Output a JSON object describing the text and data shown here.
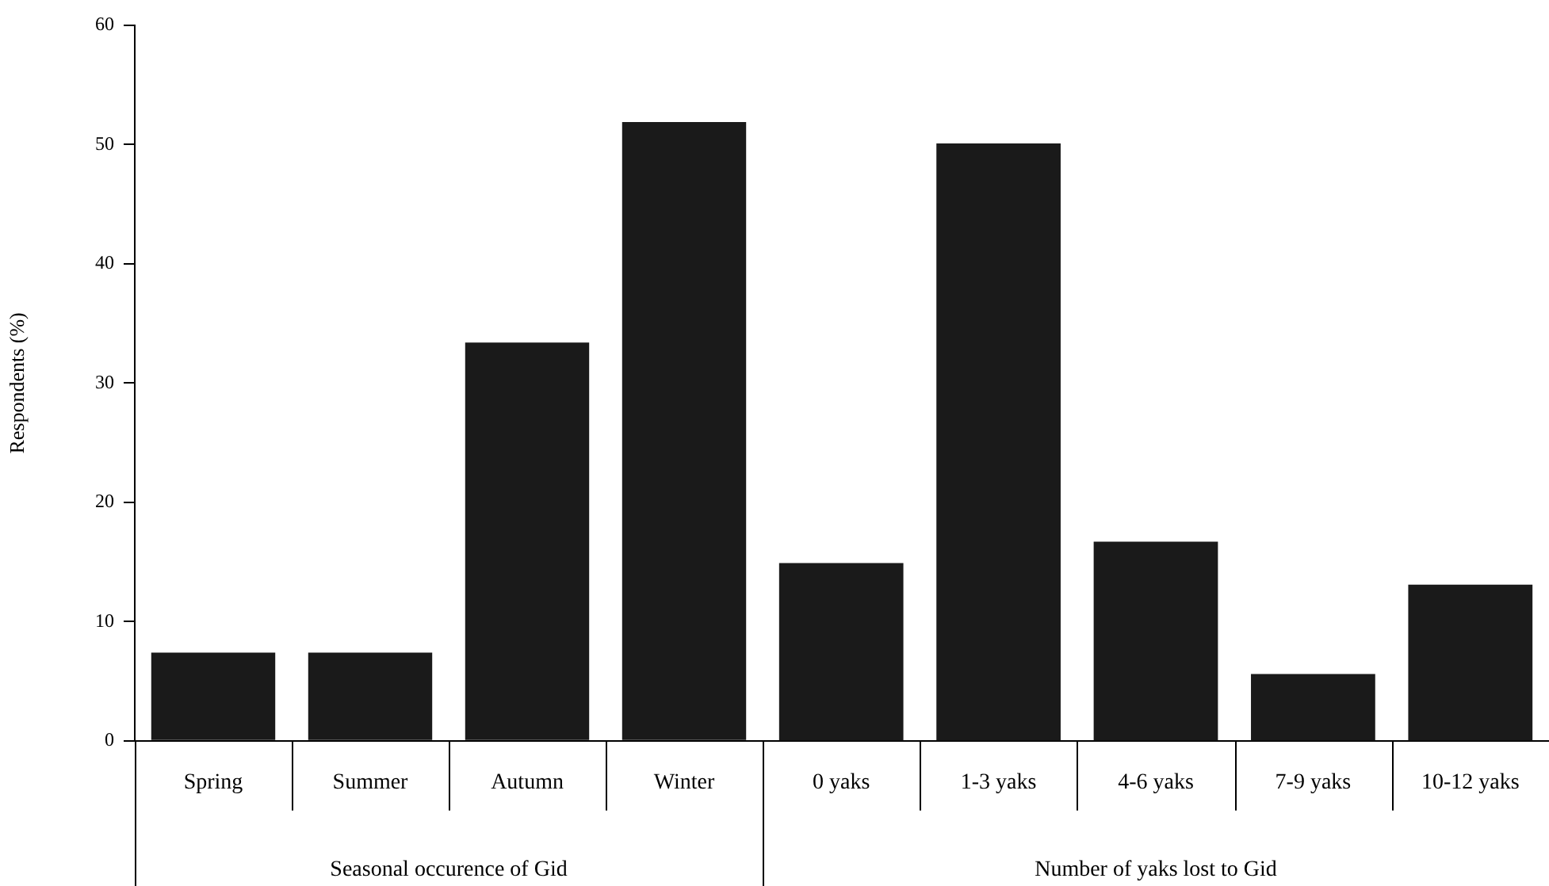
{
  "chart_data": [
    {
      "type": "bar",
      "ylabel": "Respondents (%)",
      "xlabel": "Seasonal occurence of Gid",
      "categories": [
        "Spring",
        "Summer",
        "Autumn",
        "Winter"
      ],
      "values": [
        7.4,
        7.4,
        33.4,
        51.9
      ],
      "color": "#1a1a1a",
      "ylim": [
        0,
        60
      ],
      "yticks": [
        0,
        10,
        20,
        30,
        40,
        50,
        60
      ]
    },
    {
      "type": "bar",
      "xlabel": "Number of yaks lost to Gid",
      "categories": [
        "0 yaks",
        "1-3 yaks",
        "4-6 yaks",
        "7-9 yaks",
        "10-12 yaks"
      ],
      "values": [
        14.9,
        50.1,
        16.7,
        5.6,
        13.1
      ],
      "color": "#1a1a1a",
      "ylim": [
        0,
        60
      ],
      "yticks": [
        0,
        10,
        20,
        30,
        40,
        50,
        60
      ],
      "tick_labels": "x"
    }
  ]
}
